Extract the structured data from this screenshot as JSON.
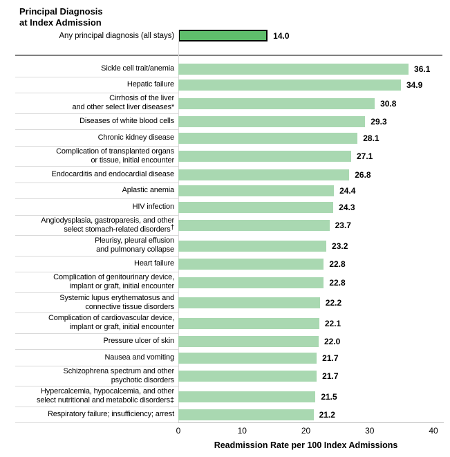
{
  "title": {
    "line1": "Principal Diagnosis",
    "line2": "at Index Admission"
  },
  "summary": {
    "label": "Any principal diagnosis (all stays)",
    "value": 14.0,
    "value_label": "14.0"
  },
  "axis": {
    "xlabel": "Readmission Rate per 100 Index Admissions",
    "xmin": 0,
    "xmax": 40
  },
  "colors": {
    "bar_fill": "#a9d8b1",
    "summary_bar_fill": "#5fbe6c",
    "summary_bar_border": "#000000",
    "row_separator": "#d9d9d9",
    "header_divider": "#7f7f7f",
    "baseline": "#bfbfbf",
    "axis_line": "#d9d9d9",
    "text": "#000000"
  },
  "chart_data": {
    "type": "bar",
    "orientation": "horizontal",
    "title": "Principal Diagnosis at Index Admission",
    "xlabel": "Readmission Rate per 100 Index Admissions",
    "xlim": [
      0,
      40
    ],
    "xticks": [
      0,
      10,
      20,
      30,
      40
    ],
    "grid": false,
    "summary_bar": {
      "category": "Any principal diagnosis (all stays)",
      "value": 14.0,
      "display": "14.0"
    },
    "rows": [
      {
        "lines": [
          "Sickle cell trait/anemia"
        ],
        "value": 36.1,
        "display": "36.1"
      },
      {
        "lines": [
          "Hepatic failure"
        ],
        "value": 34.9,
        "display": "34.9"
      },
      {
        "lines": [
          "Cirrhosis of the liver",
          "and other select liver diseases*"
        ],
        "value": 30.8,
        "display": "30.8"
      },
      {
        "lines": [
          "Diseases of white blood cells"
        ],
        "value": 29.3,
        "display": "29.3"
      },
      {
        "lines": [
          "Chronic kidney disease"
        ],
        "value": 28.1,
        "display": "28.1"
      },
      {
        "lines": [
          "Complication of transplanted organs",
          "or tissue, initial encounter"
        ],
        "value": 27.1,
        "display": "27.1"
      },
      {
        "lines": [
          "Endocarditis and endocardial disease"
        ],
        "value": 26.8,
        "display": "26.8"
      },
      {
        "lines": [
          "Aplastic anemia"
        ],
        "value": 24.4,
        "display": "24.4"
      },
      {
        "lines": [
          "HIV infection"
        ],
        "value": 24.3,
        "display": "24.3"
      },
      {
        "lines": [
          "Angiodysplasia, gastroparesis, and other",
          "select stomach-related disorders†"
        ],
        "value": 23.7,
        "display": "23.7"
      },
      {
        "lines": [
          "Pleurisy, pleural effusion",
          "and pulmonary collapse"
        ],
        "value": 23.2,
        "display": "23.2"
      },
      {
        "lines": [
          "Heart failure"
        ],
        "value": 22.8,
        "display": "22.8"
      },
      {
        "lines": [
          "Complication of genitourinary device,",
          "implant or graft, initial encounter"
        ],
        "value": 22.8,
        "display": "22.8"
      },
      {
        "lines": [
          "Systemic lupus erythematosus and",
          "connective tissue disorders"
        ],
        "value": 22.2,
        "display": "22.2"
      },
      {
        "lines": [
          "Complication of cardiovascular device,",
          "implant or graft, initial encounter"
        ],
        "value": 22.1,
        "display": "22.1"
      },
      {
        "lines": [
          "Pressure ulcer of skin"
        ],
        "value": 22.0,
        "display": "22.0"
      },
      {
        "lines": [
          "Nausea and vomiting"
        ],
        "value": 21.7,
        "display": "21.7"
      },
      {
        "lines": [
          "Schizophrena spectrum and other",
          "psychotic disorders"
        ],
        "value": 21.7,
        "display": "21.7"
      },
      {
        "lines": [
          "Hypercalcemia, hypocalcemia, and other",
          "select nutritional and metabolic disorders‡"
        ],
        "value": 21.5,
        "display": "21.5"
      },
      {
        "lines": [
          "Respiratory failure; insufficiency; arrest"
        ],
        "value": 21.2,
        "display": "21.2"
      }
    ]
  }
}
